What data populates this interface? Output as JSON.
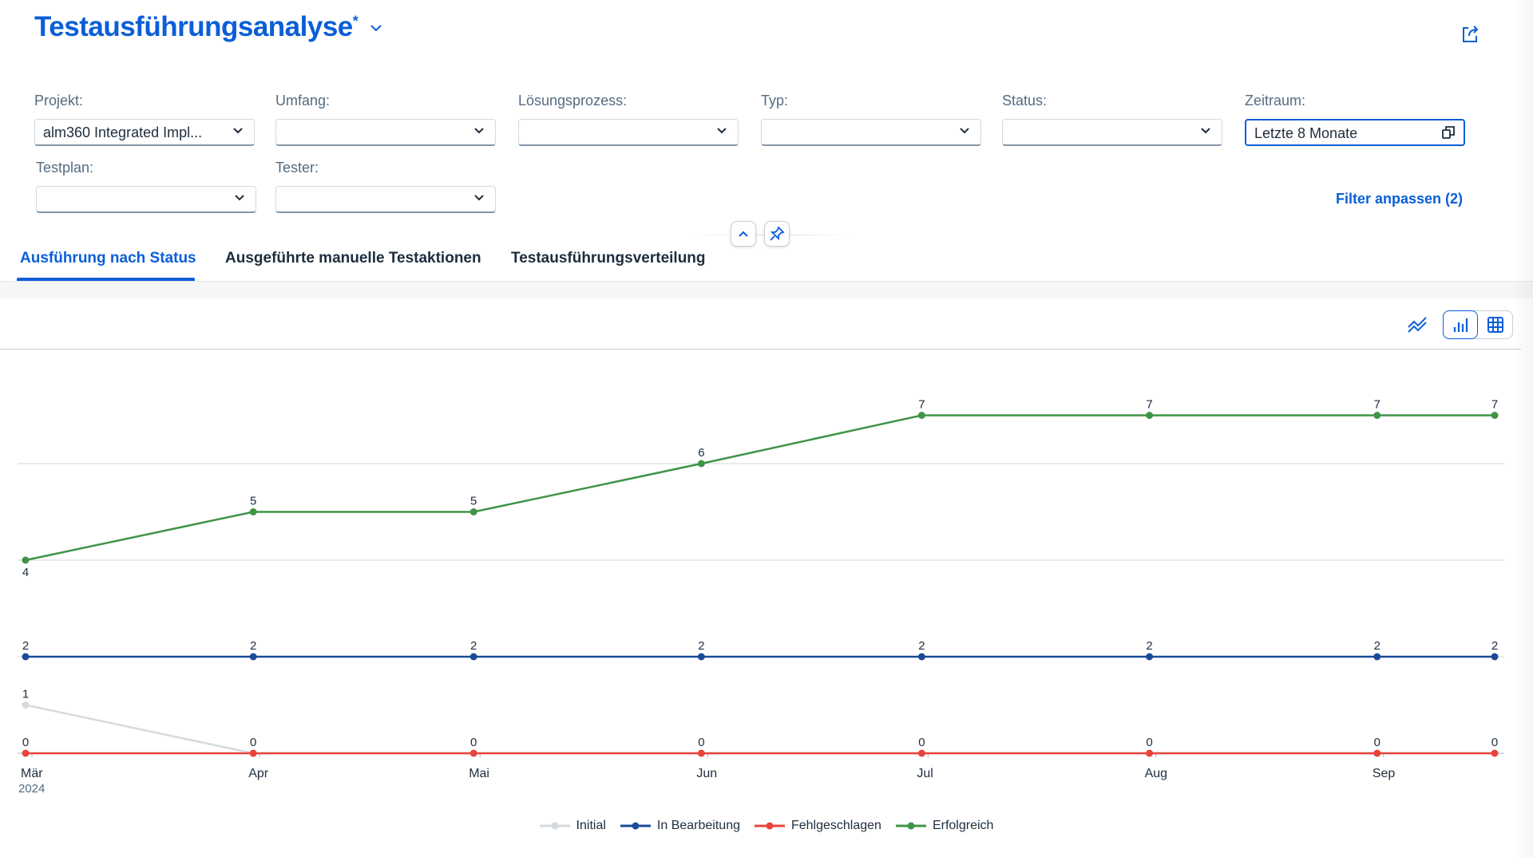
{
  "header": {
    "title": "Testausführungsanalyse",
    "modified_marker": "*"
  },
  "filters": [
    {
      "label": "Projekt:",
      "value": "alm360 Integrated Impl..."
    },
    {
      "label": "Umfang:",
      "value": ""
    },
    {
      "label": "Lösungsprozess:",
      "value": ""
    },
    {
      "label": "Typ:",
      "value": ""
    },
    {
      "label": "Status:",
      "value": ""
    },
    {
      "label": "Zeitraum:",
      "value": "Letzte 8 Monate"
    },
    {
      "label": "Testplan:",
      "value": ""
    },
    {
      "label": "Tester:",
      "value": ""
    }
  ],
  "filter_link": "Filter anpassen (2)",
  "tabs": [
    {
      "label": "Ausführung nach Status"
    },
    {
      "label": "Ausgeführte manuelle Testaktionen"
    },
    {
      "label": "Testausführungsverteilung"
    }
  ],
  "colors": {
    "accent": "#0a5ed8",
    "initial": "#d5dadf",
    "in_bearbeitung": "#1b4a9a",
    "fehlgeschlagen": "#e8433c",
    "erfolgreich": "#3f9447"
  },
  "chart_data": {
    "type": "line",
    "x": [
      "2024-03-01",
      "2024-04-01",
      "2024-05-01",
      "2024-06-01",
      "2024-07-01",
      "2024-08-01",
      "2024-09-01",
      "2024-09-17"
    ],
    "x_tick_labels": [
      "Mär",
      "Apr",
      "Mai",
      "Jun",
      "Jul",
      "Aug",
      "Sep"
    ],
    "x_year_label": "2024",
    "ylim": [
      0,
      8
    ],
    "grid": true,
    "legend_position": "bottom",
    "series": [
      {
        "name": "Initial",
        "color": "#d5dadf",
        "values": [
          1,
          0,
          0,
          0,
          0,
          0,
          0,
          0
        ]
      },
      {
        "name": "In Bearbeitung",
        "color": "#1b4a9a",
        "values": [
          2,
          2,
          2,
          2,
          2,
          2,
          2,
          2
        ]
      },
      {
        "name": "Fehlgeschlagen",
        "color": "#e8433c",
        "values": [
          0,
          0,
          0,
          0,
          0,
          0,
          0,
          0
        ]
      },
      {
        "name": "Erfolgreich",
        "color": "#3f9447",
        "values": [
          4,
          5,
          5,
          6,
          7,
          7,
          7,
          7
        ]
      }
    ]
  }
}
